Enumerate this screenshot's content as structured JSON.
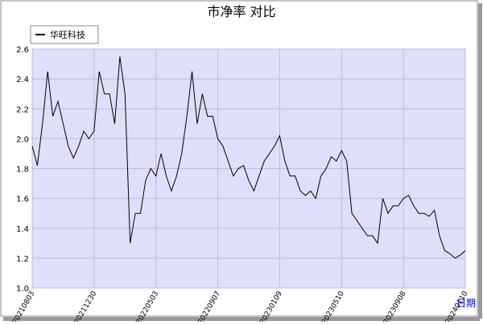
{
  "chart_data": {
    "type": "line",
    "title": "市净率  对比",
    "x_label": "日期",
    "categories": [
      "20210803",
      null,
      null,
      null,
      null,
      null,
      null,
      null,
      null,
      null,
      null,
      null,
      "20211230",
      null,
      null,
      null,
      null,
      null,
      null,
      null,
      null,
      null,
      null,
      null,
      "20220503",
      null,
      null,
      null,
      null,
      null,
      null,
      null,
      null,
      null,
      null,
      null,
      "20220907",
      null,
      null,
      null,
      null,
      null,
      null,
      null,
      null,
      null,
      null,
      null,
      "20230109",
      null,
      null,
      null,
      null,
      null,
      null,
      null,
      null,
      null,
      null,
      null,
      "20230510",
      null,
      null,
      null,
      null,
      null,
      null,
      null,
      null,
      null,
      null,
      null,
      "20230908",
      null,
      null,
      null,
      null,
      null,
      null,
      null,
      null,
      null,
      null,
      null,
      "20240110"
    ],
    "series": [
      {
        "name": "华旺科技",
        "color": "#000000",
        "values": [
          1.95,
          1.82,
          2.1,
          2.45,
          2.15,
          2.25,
          2.1,
          1.95,
          1.87,
          1.95,
          2.05,
          2.0,
          2.05,
          2.45,
          2.3,
          2.3,
          2.1,
          2.55,
          2.3,
          1.3,
          1.5,
          1.5,
          1.72,
          1.8,
          1.75,
          1.9,
          1.75,
          1.65,
          1.75,
          1.9,
          2.15,
          2.45,
          2.1,
          2.3,
          2.15,
          2.15,
          2.0,
          1.95,
          1.85,
          1.75,
          1.8,
          1.82,
          1.72,
          1.65,
          1.75,
          1.85,
          1.9,
          1.95,
          2.02,
          1.85,
          1.75,
          1.75,
          1.65,
          1.62,
          1.65,
          1.6,
          1.75,
          1.8,
          1.88,
          1.85,
          1.92,
          1.85,
          1.5,
          1.45,
          1.4,
          1.35,
          1.35,
          1.3,
          1.6,
          1.5,
          1.55,
          1.55,
          1.6,
          1.62,
          1.55,
          1.5,
          1.5,
          1.48,
          1.52,
          1.35,
          1.25,
          1.23,
          1.2,
          1.22,
          1.25
        ]
      }
    ],
    "ylim": [
      1,
      2.6
    ],
    "yticks": [
      {
        "value": 1,
        "label": "1.0"
      },
      1.2,
      1.4,
      1.6,
      1.8,
      {
        "value": 2,
        "label": "2.0"
      },
      2.2,
      2.4,
      2.6
    ],
    "grid": true,
    "legend": "top-left"
  }
}
